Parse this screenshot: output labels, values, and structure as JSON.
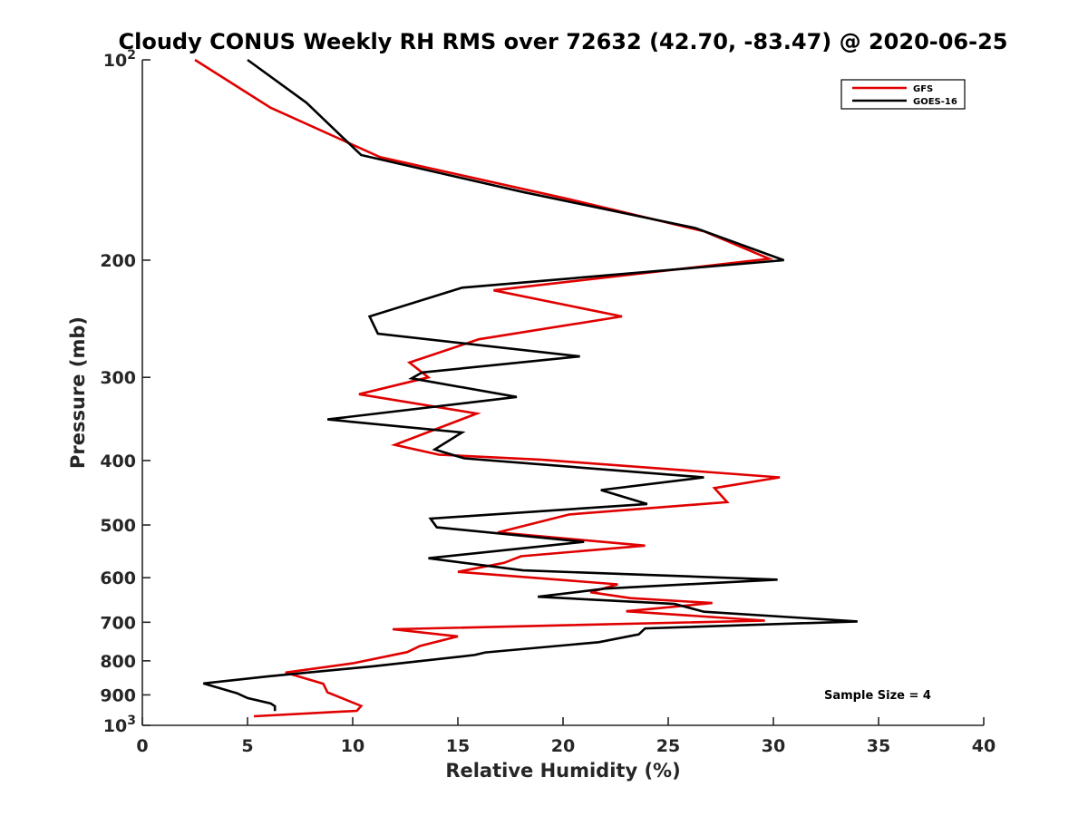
{
  "chart_data": {
    "type": "line",
    "title": "Cloudy CONUS Weekly RH RMS over 72632 (42.70, -83.47) @ 2020-06-25",
    "xlabel": "Relative Humidity (%)",
    "ylabel": "Pressure (mb)",
    "xlim": [
      0,
      40
    ],
    "ylim": [
      100,
      1000
    ],
    "y_scale": "log",
    "y_reversed": true,
    "x_ticks": [
      0,
      5,
      10,
      15,
      20,
      25,
      30,
      35,
      40
    ],
    "y_ticks": [
      {
        "value": 100,
        "base": "10",
        "exp": "2"
      },
      {
        "value": 200,
        "label": "200"
      },
      {
        "value": 300,
        "label": "300"
      },
      {
        "value": 400,
        "label": "400"
      },
      {
        "value": 500,
        "label": "500"
      },
      {
        "value": 600,
        "label": "600"
      },
      {
        "value": 700,
        "label": "700"
      },
      {
        "value": 800,
        "label": "800"
      },
      {
        "value": 900,
        "label": "900"
      },
      {
        "value": 1000,
        "base": "10",
        "exp": "3"
      }
    ],
    "grid": false,
    "legend_position": "top-right",
    "annotation": "Sample Size = 4",
    "series": [
      {
        "name": "GFS",
        "color": "#e00000",
        "points": [
          [
            2.5,
            100
          ],
          [
            6.1,
            118
          ],
          [
            11.3,
            140
          ],
          [
            20.3,
            162
          ],
          [
            26.7,
            181
          ],
          [
            29.8,
            199
          ],
          [
            16.7,
            222
          ],
          [
            22.8,
            243
          ],
          [
            16.0,
            263
          ],
          [
            12.7,
            285
          ],
          [
            13.6,
            300
          ],
          [
            10.3,
            318
          ],
          [
            15.9,
            340
          ],
          [
            12.0,
            379
          ],
          [
            14.1,
            392
          ],
          [
            19.0,
            399
          ],
          [
            30.3,
            424
          ],
          [
            27.2,
            440
          ],
          [
            27.8,
            462
          ],
          [
            20.3,
            482
          ],
          [
            16.9,
            513
          ],
          [
            23.9,
            537
          ],
          [
            18.0,
            557
          ],
          [
            17.2,
            570
          ],
          [
            15.0,
            588
          ],
          [
            22.6,
            614
          ],
          [
            21.3,
            631
          ],
          [
            23.2,
            644
          ],
          [
            27.1,
            655
          ],
          [
            23.0,
            674
          ],
          [
            29.6,
            696
          ],
          [
            11.9,
            717
          ],
          [
            15.0,
            735
          ],
          [
            13.2,
            760
          ],
          [
            12.6,
            776
          ],
          [
            10.0,
            807
          ],
          [
            6.8,
            833
          ],
          [
            8.6,
            866
          ],
          [
            8.8,
            892
          ],
          [
            10.4,
            935
          ],
          [
            10.2,
            951
          ],
          [
            5.3,
            969
          ]
        ]
      },
      {
        "name": "GOES-16",
        "color": "#000000",
        "points": [
          [
            5.0,
            100
          ],
          [
            7.8,
            116
          ],
          [
            10.4,
            139
          ],
          [
            18.1,
            158
          ],
          [
            26.3,
            179
          ],
          [
            30.5,
            200
          ],
          [
            15.2,
            220
          ],
          [
            10.8,
            243
          ],
          [
            11.2,
            258
          ],
          [
            20.8,
            279
          ],
          [
            13.3,
            295
          ],
          [
            12.8,
            301
          ],
          [
            17.8,
            321
          ],
          [
            8.8,
            347
          ],
          [
            15.2,
            363
          ],
          [
            13.9,
            385
          ],
          [
            15.3,
            397
          ],
          [
            26.7,
            424
          ],
          [
            21.8,
            443
          ],
          [
            24.0,
            465
          ],
          [
            13.7,
            489
          ],
          [
            14.0,
            504
          ],
          [
            21.0,
            530
          ],
          [
            13.6,
            561
          ],
          [
            18.1,
            585
          ],
          [
            30.2,
            604
          ],
          [
            22.0,
            623
          ],
          [
            18.8,
            641
          ],
          [
            25.3,
            657
          ],
          [
            26.7,
            675
          ],
          [
            34.0,
            698
          ],
          [
            23.9,
            715
          ],
          [
            23.6,
            730
          ],
          [
            21.7,
            750
          ],
          [
            16.3,
            777
          ],
          [
            15.8,
            784
          ],
          [
            11.0,
            815
          ],
          [
            6.0,
            844
          ],
          [
            2.9,
            865
          ],
          [
            4.5,
            895
          ],
          [
            5.0,
            910
          ],
          [
            6.1,
            927
          ],
          [
            6.3,
            936
          ],
          [
            6.3,
            952
          ]
        ]
      }
    ]
  }
}
